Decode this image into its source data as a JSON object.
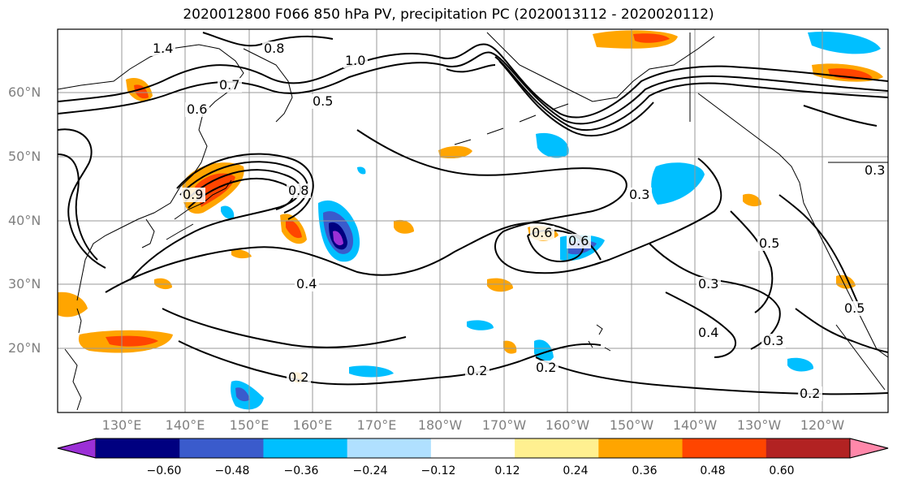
{
  "title": "2020012800 F066 850 hPa PV, precipitation PC (2020013112 - 2020020112)",
  "map": {
    "lat_labels": [
      "60°N",
      "50°N",
      "40°N",
      "30°N",
      "20°N"
    ],
    "lon_labels": [
      "130°E",
      "140°E",
      "150°E",
      "160°E",
      "170°E",
      "180°W",
      "170°W",
      "160°W",
      "150°W",
      "140°W",
      "130°W",
      "120°W"
    ],
    "contour_labels": [
      "1.4",
      "0.8",
      "0.7",
      "0.6",
      "1.0",
      "0.5",
      "0.8",
      "0.3",
      "0.2",
      "0.9",
      "0.4",
      "0.5",
      "0.3",
      "0.4",
      "0.3",
      "0.2",
      "0.2",
      "0.2",
      "0.6",
      "0.6",
      "0.5",
      "0.3"
    ],
    "colors": {
      "ocean": "#ffffff",
      "contour": "#000000",
      "grid": "#999999",
      "coast": "#000000"
    }
  },
  "colorbar": {
    "ticks": [
      "−0.60",
      "−0.48",
      "−0.36",
      "−0.24",
      "−0.12",
      "0.12",
      "0.24",
      "0.36",
      "0.48",
      "0.60"
    ],
    "colors": [
      "#9b30d6",
      "#000080",
      "#3a5bcc",
      "#00bfff",
      "#b0e0ff",
      "#ffffff",
      "#fff090",
      "#ffa500",
      "#ff4500",
      "#b22222",
      "#ff88aa"
    ]
  }
}
